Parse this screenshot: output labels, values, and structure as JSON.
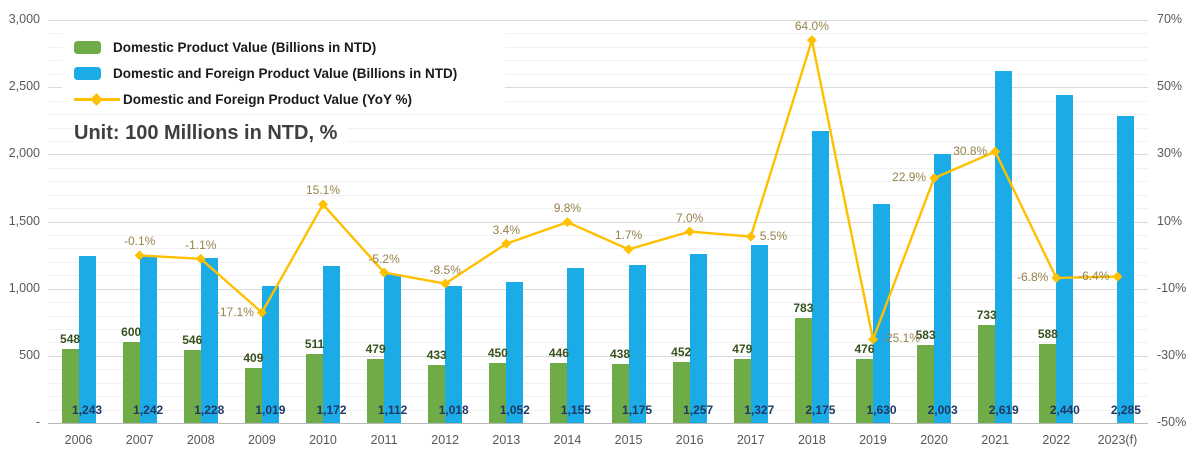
{
  "chart": {
    "unit_note": "Unit: 100 Millions in NTD, %",
    "legend": [
      {
        "label": "Domestic Product Value (Billions in NTD)",
        "marker": "bar",
        "color": "#6FAC47"
      },
      {
        "label": "Domestic and Foreign Product Value (Billions in NTD)",
        "marker": "bar",
        "color": "#1BACE8"
      },
      {
        "label": "Domestic and Foreign Product Value (YoY %)",
        "marker": "line-diamond",
        "color": "#FFC000"
      }
    ]
  },
  "chart_data": {
    "type": "bar",
    "subtype": "grouped-bars-with-line-overlay",
    "title": "",
    "xlabel": "",
    "ylabel": "",
    "grid": "on",
    "legend_position": "top-left-inside",
    "categories": [
      "2006",
      "2007",
      "2008",
      "2009",
      "2010",
      "2011",
      "2012",
      "2013",
      "2014",
      "2015",
      "2016",
      "2017",
      "2018",
      "2019",
      "2020",
      "2021",
      "2022",
      "2023(f)"
    ],
    "series": [
      {
        "name": "Domestic Product Value (Billions in NTD)",
        "type": "bar",
        "axis": "left",
        "color": "#6FAC47",
        "label_color": "#37511d",
        "values": [
          548,
          600,
          546,
          409,
          511,
          479,
          433,
          450,
          446,
          438,
          452,
          479,
          783,
          476,
          583,
          733,
          588,
          null
        ],
        "labels": [
          "548",
          "600",
          "546",
          "409",
          "511",
          "479",
          "433",
          "450",
          "446",
          "438",
          "452",
          "479",
          "783",
          "476",
          "583",
          "733",
          "588",
          ""
        ]
      },
      {
        "name": "Domestic and Foreign Product Value (Billions in NTD)",
        "type": "bar",
        "axis": "left",
        "color": "#1BACE8",
        "label_color": "#1F3864",
        "values": [
          1243,
          1242,
          1228,
          1019,
          1172,
          1112,
          1018,
          1052,
          1155,
          1175,
          1257,
          1327,
          2175,
          1630,
          2003,
          2619,
          2440,
          2285
        ],
        "labels": [
          "1,243",
          "1,242",
          "1,228",
          "1,019",
          "1,172",
          "1,112",
          "1,018",
          "1,052",
          "1,155",
          "1,175",
          "1,257",
          "1,327",
          "2,175",
          "1,630",
          "2,003",
          "2,619",
          "2,440",
          "2,285"
        ]
      },
      {
        "name": "Domestic and Foreign Product Value (YoY %)",
        "type": "line",
        "axis": "right",
        "color": "#FFC000",
        "label_color": "#97824a",
        "marker": "diamond",
        "values": [
          null,
          -0.1,
          -1.1,
          -17.1,
          15.1,
          -5.2,
          -8.5,
          3.4,
          9.8,
          1.7,
          7.0,
          5.5,
          64.0,
          -25.1,
          22.9,
          30.8,
          -6.8,
          -6.4
        ],
        "labels": [
          "",
          "-0.1%",
          "-1.1%",
          "-17.1%",
          "15.1%",
          "-5.2%",
          "-8.5%",
          "3.4%",
          "9.8%",
          "1.7%",
          "7.0%",
          "5.5%",
          "64.0%",
          "-25.1%",
          "22.9%",
          "30.8%",
          "-6.8%",
          "-6.4%"
        ],
        "label_placements": [
          "above",
          "above",
          "above",
          "left",
          "above",
          "above",
          "above",
          "above",
          "above",
          "above",
          "above",
          "right",
          "above",
          "right",
          "left",
          "left",
          "left",
          "left"
        ]
      }
    ],
    "left_axis": {
      "min": 0,
      "max": 3000,
      "tick_step": 500,
      "minor_step": 100,
      "tick_labels": [
        "3,000",
        "2,500",
        "2,000",
        "1,500",
        "1,000",
        "500",
        "-"
      ]
    },
    "right_axis": {
      "min": -50,
      "max": 70,
      "tick_step": 20,
      "tick_labels": [
        "70%",
        "50%",
        "30%",
        "10%",
        "-10%",
        "-30%",
        "-50%"
      ]
    }
  }
}
